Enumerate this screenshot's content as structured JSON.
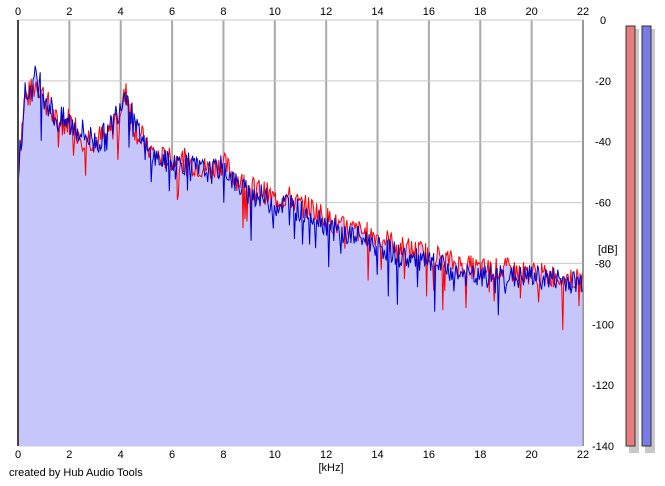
{
  "chart_data": {
    "type": "area",
    "title": "",
    "xlabel": "[kHz]",
    "ylabel": "[dB]",
    "x_ticks": [
      "0",
      "2",
      "4",
      "6",
      "8",
      "10",
      "12",
      "14",
      "16",
      "18",
      "20",
      "22"
    ],
    "y_ticks": [
      "0",
      "-20",
      "-40",
      "-60",
      "-80",
      "-100",
      "-120",
      "-140"
    ],
    "xlim": [
      0,
      22
    ],
    "ylim": [
      -140,
      0
    ],
    "grid": true,
    "legend": "none",
    "series": [
      {
        "color": "#ff0000",
        "x": [
          0,
          0.25,
          0.5,
          0.75,
          1,
          1.5,
          2,
          2.5,
          3,
          3.5,
          4,
          4.25,
          4.5,
          5,
          5.5,
          6,
          6.5,
          7,
          7.5,
          8,
          8.5,
          9,
          9.5,
          10,
          10.5,
          11,
          11.5,
          12,
          12.5,
          13,
          13.5,
          14,
          14.5,
          15,
          15.5,
          16,
          16.5,
          17,
          17.5,
          18,
          18.5,
          19,
          19.5,
          20,
          20.5,
          21,
          21.5,
          22
        ],
        "values": [
          -50,
          -26,
          -24,
          -20,
          -25,
          -34,
          -33,
          -38,
          -39,
          -39,
          -28,
          -24,
          -34,
          -42,
          -45,
          -46,
          -46,
          -48,
          -49,
          -47,
          -52,
          -55,
          -56,
          -59,
          -58,
          -61,
          -62,
          -65,
          -68,
          -69,
          -70,
          -71,
          -73,
          -75,
          -76,
          -77,
          -78,
          -80,
          -81,
          -82,
          -82,
          -82,
          -83,
          -83,
          -84,
          -84,
          -85,
          -86
        ]
      },
      {
        "color": "#0000c8",
        "x": [
          0,
          0.25,
          0.5,
          0.75,
          1,
          1.5,
          2,
          2.5,
          3,
          3.5,
          4,
          4.25,
          4.5,
          5,
          5.5,
          6,
          6.5,
          7,
          7.5,
          8,
          8.5,
          9,
          9.5,
          10,
          10.5,
          11,
          11.5,
          12,
          12.5,
          13,
          13.5,
          14,
          14.5,
          15,
          15.5,
          16,
          16.5,
          17,
          17.5,
          18,
          18.5,
          19,
          19.5,
          20,
          20.5,
          21,
          21.5,
          22
        ],
        "values": [
          -50,
          -25,
          -23,
          -18,
          -24,
          -33,
          -34,
          -37,
          -40,
          -38,
          -27,
          -22,
          -35,
          -43,
          -46,
          -47,
          -47,
          -49,
          -50,
          -48,
          -54,
          -57,
          -58,
          -61,
          -60,
          -63,
          -64,
          -67,
          -70,
          -71,
          -72,
          -74,
          -76,
          -78,
          -79,
          -80,
          -81,
          -83,
          -84,
          -85,
          -84,
          -84,
          -85,
          -84,
          -85,
          -85,
          -86,
          -86
        ]
      }
    ],
    "fill_color": "#c6c6fb",
    "level_meters": [
      {
        "channel": "left",
        "color": "#e87b7b",
        "level_db": 0
      },
      {
        "channel": "right",
        "color": "#7b7be8",
        "level_db": 0
      }
    ]
  },
  "footer_text": "created by Hub Audio Tools"
}
